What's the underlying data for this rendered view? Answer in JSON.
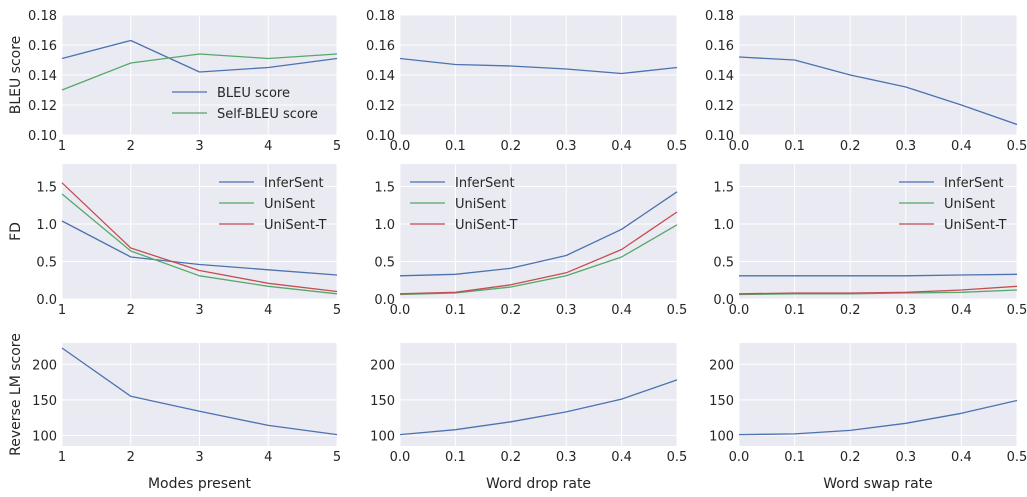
{
  "colors": {
    "panel_bg": "#EAEAF2",
    "grid": "#FFFFFF",
    "text": "#262626",
    "InferSent": "#4C72B0",
    "UniSent": "#55A868",
    "UniSent-T": "#C44E52",
    "BLEU score": "#4C72B0",
    "Self-BLEU score": "#55A868"
  },
  "row_labels": [
    "BLEU score",
    "FD",
    "Reverse LM score"
  ],
  "col_labels": [
    "Modes present",
    "Word drop rate",
    "Word swap rate"
  ],
  "chart_data": [
    {
      "id": "bleu-modes",
      "type": "line",
      "row": 0,
      "col": 0,
      "ylabel": "BLEU score",
      "xlabel": "",
      "xlim": [
        1,
        5
      ],
      "ylim": [
        0.1,
        0.18
      ],
      "xticks": [
        1,
        2,
        3,
        4,
        5
      ],
      "xtick_labels": [
        "1",
        "2",
        "3",
        "4",
        "5"
      ],
      "yticks": [
        0.1,
        0.12,
        0.14,
        0.16,
        0.18
      ],
      "ytick_labels": [
        "0.10",
        "0.12",
        "0.14",
        "0.16",
        "0.18"
      ],
      "legend": "center-right",
      "grid": true,
      "x": [
        1,
        2,
        3,
        4,
        5
      ],
      "series": [
        {
          "name": "BLEU score",
          "values": [
            0.151,
            0.163,
            0.142,
            0.145,
            0.151
          ]
        },
        {
          "name": "Self-BLEU score",
          "values": [
            0.13,
            0.148,
            0.154,
            0.151,
            0.154
          ]
        }
      ]
    },
    {
      "id": "bleu-drop",
      "type": "line",
      "row": 0,
      "col": 1,
      "ylabel": "",
      "xlabel": "",
      "xlim": [
        0,
        0.5
      ],
      "ylim": [
        0.1,
        0.18
      ],
      "xticks": [
        0,
        0.1,
        0.2,
        0.3,
        0.4,
        0.5
      ],
      "xtick_labels": [
        "0.0",
        "0.1",
        "0.2",
        "0.3",
        "0.4",
        "0.5"
      ],
      "yticks": [
        0.1,
        0.12,
        0.14,
        0.16,
        0.18
      ],
      "ytick_labels": [
        "0.10",
        "0.12",
        "0.14",
        "0.16",
        "0.18"
      ],
      "legend": "none",
      "grid": true,
      "x": [
        0,
        0.1,
        0.2,
        0.3,
        0.4,
        0.5
      ],
      "series": [
        {
          "color_key": "BLEU score",
          "values": [
            0.151,
            0.147,
            0.146,
            0.144,
            0.141,
            0.145
          ]
        }
      ]
    },
    {
      "id": "bleu-swap",
      "type": "line",
      "row": 0,
      "col": 2,
      "ylabel": "",
      "xlabel": "",
      "xlim": [
        0,
        0.5
      ],
      "ylim": [
        0.1,
        0.18
      ],
      "xticks": [
        0,
        0.1,
        0.2,
        0.3,
        0.4,
        0.5
      ],
      "xtick_labels": [
        "0.0",
        "0.1",
        "0.2",
        "0.3",
        "0.4",
        "0.5"
      ],
      "yticks": [
        0.1,
        0.12,
        0.14,
        0.16,
        0.18
      ],
      "ytick_labels": [
        "0.10",
        "0.12",
        "0.14",
        "0.16",
        "0.18"
      ],
      "legend": "none",
      "grid": true,
      "x": [
        0,
        0.1,
        0.2,
        0.3,
        0.4,
        0.5
      ],
      "series": [
        {
          "color_key": "BLEU score",
          "values": [
            0.152,
            0.15,
            0.14,
            0.132,
            0.12,
            0.107
          ]
        }
      ]
    },
    {
      "id": "fd-modes",
      "type": "line",
      "row": 1,
      "col": 0,
      "ylabel": "FD",
      "xlabel": "",
      "xlim": [
        1,
        5
      ],
      "ylim": [
        0,
        1.8
      ],
      "xticks": [
        1,
        2,
        3,
        4,
        5
      ],
      "xtick_labels": [
        "1",
        "2",
        "3",
        "4",
        "5"
      ],
      "yticks": [
        0,
        0.5,
        1.0,
        1.5
      ],
      "ytick_labels": [
        "0.0",
        "0.5",
        "1.0",
        "1.5"
      ],
      "legend": "top-right",
      "grid": true,
      "x": [
        1,
        2,
        3,
        4,
        5
      ],
      "series": [
        {
          "name": "InferSent",
          "values": [
            1.04,
            0.56,
            0.46,
            0.39,
            0.32
          ]
        },
        {
          "name": "UniSent",
          "values": [
            1.4,
            0.64,
            0.31,
            0.17,
            0.07
          ]
        },
        {
          "name": "UniSent-T",
          "values": [
            1.55,
            0.68,
            0.38,
            0.21,
            0.1
          ]
        }
      ]
    },
    {
      "id": "fd-drop",
      "type": "line",
      "row": 1,
      "col": 1,
      "ylabel": "",
      "xlabel": "",
      "xlim": [
        0,
        0.5
      ],
      "ylim": [
        0,
        1.8
      ],
      "xticks": [
        0,
        0.1,
        0.2,
        0.3,
        0.4,
        0.5
      ],
      "xtick_labels": [
        "0.0",
        "0.1",
        "0.2",
        "0.3",
        "0.4",
        "0.5"
      ],
      "yticks": [
        0,
        0.5,
        1.0,
        1.5
      ],
      "ytick_labels": [
        "0.0",
        "0.5",
        "1.0",
        "1.5"
      ],
      "legend": "top-left",
      "grid": true,
      "x": [
        0,
        0.1,
        0.2,
        0.3,
        0.4,
        0.5
      ],
      "series": [
        {
          "name": "InferSent",
          "values": [
            0.31,
            0.33,
            0.41,
            0.58,
            0.93,
            1.43
          ]
        },
        {
          "name": "UniSent",
          "values": [
            0.06,
            0.08,
            0.16,
            0.31,
            0.56,
            0.99
          ]
        },
        {
          "name": "UniSent-T",
          "values": [
            0.07,
            0.09,
            0.19,
            0.35,
            0.66,
            1.16
          ]
        }
      ]
    },
    {
      "id": "fd-swap",
      "type": "line",
      "row": 1,
      "col": 2,
      "ylabel": "",
      "xlabel": "",
      "xlim": [
        0,
        0.5
      ],
      "ylim": [
        0,
        1.8
      ],
      "xticks": [
        0,
        0.1,
        0.2,
        0.3,
        0.4,
        0.5
      ],
      "xtick_labels": [
        "0.0",
        "0.1",
        "0.2",
        "0.3",
        "0.4",
        "0.5"
      ],
      "yticks": [
        0,
        0.5,
        1.0,
        1.5
      ],
      "ytick_labels": [
        "0.0",
        "0.5",
        "1.0",
        "1.5"
      ],
      "legend": "top-right",
      "grid": true,
      "x": [
        0,
        0.1,
        0.2,
        0.3,
        0.4,
        0.5
      ],
      "series": [
        {
          "name": "InferSent",
          "values": [
            0.31,
            0.31,
            0.31,
            0.31,
            0.32,
            0.33
          ]
        },
        {
          "name": "UniSent",
          "values": [
            0.06,
            0.07,
            0.07,
            0.08,
            0.09,
            0.12
          ]
        },
        {
          "name": "UniSent-T",
          "values": [
            0.07,
            0.08,
            0.08,
            0.09,
            0.12,
            0.17
          ]
        }
      ]
    },
    {
      "id": "rlm-modes",
      "type": "line",
      "row": 2,
      "col": 0,
      "ylabel": "Reverse LM score",
      "xlabel": "Modes present",
      "xlim": [
        1,
        5
      ],
      "ylim": [
        85,
        230
      ],
      "xticks": [
        1,
        2,
        3,
        4,
        5
      ],
      "xtick_labels": [
        "1",
        "2",
        "3",
        "4",
        "5"
      ],
      "yticks": [
        100,
        150,
        200
      ],
      "ytick_labels": [
        "100",
        "150",
        "200"
      ],
      "legend": "none",
      "grid": true,
      "x": [
        1,
        2,
        3,
        4,
        5
      ],
      "series": [
        {
          "color_key": "InferSent",
          "values": [
            223,
            155,
            134,
            114,
            101
          ]
        }
      ]
    },
    {
      "id": "rlm-drop",
      "type": "line",
      "row": 2,
      "col": 1,
      "ylabel": "",
      "xlabel": "Word drop rate",
      "xlim": [
        0,
        0.5
      ],
      "ylim": [
        85,
        230
      ],
      "xticks": [
        0,
        0.1,
        0.2,
        0.3,
        0.4,
        0.5
      ],
      "xtick_labels": [
        "0.0",
        "0.1",
        "0.2",
        "0.3",
        "0.4",
        "0.5"
      ],
      "yticks": [
        100,
        150,
        200
      ],
      "ytick_labels": [
        "100",
        "150",
        "200"
      ],
      "legend": "none",
      "grid": true,
      "x": [
        0,
        0.1,
        0.2,
        0.3,
        0.4,
        0.5
      ],
      "series": [
        {
          "color_key": "InferSent",
          "values": [
            101,
            108,
            119,
            133,
            151,
            178
          ]
        }
      ]
    },
    {
      "id": "rlm-swap",
      "type": "line",
      "row": 2,
      "col": 2,
      "ylabel": "",
      "xlabel": "Word swap rate",
      "xlim": [
        0,
        0.5
      ],
      "ylim": [
        85,
        230
      ],
      "xticks": [
        0,
        0.1,
        0.2,
        0.3,
        0.4,
        0.5
      ],
      "xtick_labels": [
        "0.0",
        "0.1",
        "0.2",
        "0.3",
        "0.4",
        "0.5"
      ],
      "yticks": [
        100,
        150,
        200
      ],
      "ytick_labels": [
        "100",
        "150",
        "200"
      ],
      "legend": "none",
      "grid": true,
      "x": [
        0,
        0.1,
        0.2,
        0.3,
        0.4,
        0.5
      ],
      "series": [
        {
          "color_key": "InferSent",
          "values": [
            101,
            102,
            107,
            117,
            131,
            149
          ]
        }
      ]
    }
  ]
}
